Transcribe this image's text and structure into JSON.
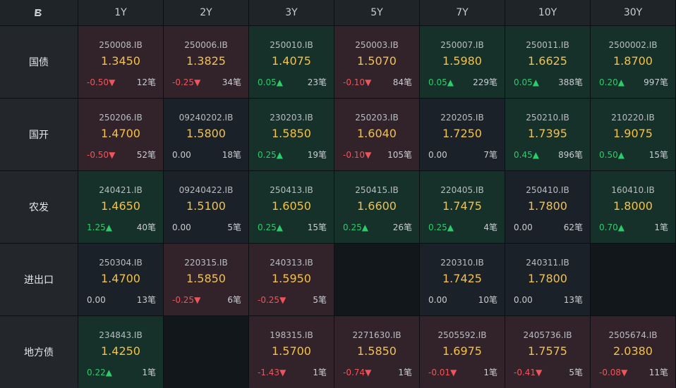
{
  "corner_logo": "B",
  "tenors": [
    "1Y",
    "2Y",
    "3Y",
    "5Y",
    "7Y",
    "10Y",
    "30Y"
  ],
  "count_suffix": "笔",
  "colors": {
    "up_text": "#2ecb6b",
    "down_text": "#f0545b",
    "price": "#f2c14e",
    "up_bg": "#163129",
    "down_bg": "#32232a",
    "flat_bg": "#1b2128",
    "empty_bg": "#12171c"
  },
  "rows": [
    {
      "label": "国债",
      "cells": [
        {
          "code": "250008.IB",
          "price": "1.3450",
          "change": "-0.50",
          "dir": "down",
          "count": "12笔"
        },
        {
          "code": "250006.IB",
          "price": "1.3825",
          "change": "-0.25",
          "dir": "down",
          "count": "34笔"
        },
        {
          "code": "250010.IB",
          "price": "1.4075",
          "change": "0.05",
          "dir": "up",
          "count": "23笔"
        },
        {
          "code": "250003.IB",
          "price": "1.5070",
          "change": "-0.10",
          "dir": "down",
          "count": "84笔"
        },
        {
          "code": "250007.IB",
          "price": "1.5980",
          "change": "0.05",
          "dir": "up",
          "count": "229笔"
        },
        {
          "code": "250011.IB",
          "price": "1.6625",
          "change": "0.05",
          "dir": "up",
          "count": "388笔"
        },
        {
          "code": "2500002.IB",
          "price": "1.8700",
          "change": "0.20",
          "dir": "up",
          "count": "997笔"
        }
      ]
    },
    {
      "label": "国开",
      "cells": [
        {
          "code": "250206.IB",
          "price": "1.4700",
          "change": "-0.50",
          "dir": "down",
          "count": "52笔"
        },
        {
          "code": "09240202.IB",
          "price": "1.5800",
          "change": "0.00",
          "dir": "flat",
          "count": "18笔"
        },
        {
          "code": "230203.IB",
          "price": "1.5850",
          "change": "0.25",
          "dir": "up",
          "count": "19笔"
        },
        {
          "code": "250203.IB",
          "price": "1.6040",
          "change": "-0.10",
          "dir": "down",
          "count": "105笔"
        },
        {
          "code": "220205.IB",
          "price": "1.7250",
          "change": "0.00",
          "dir": "flat",
          "count": "7笔"
        },
        {
          "code": "250210.IB",
          "price": "1.7395",
          "change": "0.45",
          "dir": "up",
          "count": "896笔"
        },
        {
          "code": "210220.IB",
          "price": "1.9075",
          "change": "0.50",
          "dir": "up",
          "count": "15笔"
        }
      ]
    },
    {
      "label": "农发",
      "cells": [
        {
          "code": "240421.IB",
          "price": "1.4650",
          "change": "1.25",
          "dir": "up",
          "count": "40笔"
        },
        {
          "code": "09240422.IB",
          "price": "1.5100",
          "change": "0.00",
          "dir": "flat",
          "count": "5笔"
        },
        {
          "code": "250413.IB",
          "price": "1.6050",
          "change": "0.25",
          "dir": "up",
          "count": "15笔"
        },
        {
          "code": "250415.IB",
          "price": "1.6600",
          "change": "0.25",
          "dir": "up",
          "count": "26笔"
        },
        {
          "code": "220405.IB",
          "price": "1.7475",
          "change": "0.25",
          "dir": "up",
          "count": "4笔"
        },
        {
          "code": "250410.IB",
          "price": "1.7800",
          "change": "0.00",
          "dir": "flat",
          "count": "62笔"
        },
        {
          "code": "160410.IB",
          "price": "1.8000",
          "change": "0.70",
          "dir": "up",
          "count": "1笔"
        }
      ]
    },
    {
      "label": "进出口",
      "cells": [
        {
          "code": "250304.IB",
          "price": "1.4700",
          "change": "0.00",
          "dir": "flat",
          "count": "13笔"
        },
        {
          "code": "220315.IB",
          "price": "1.5850",
          "change": "-0.25",
          "dir": "down",
          "count": "6笔"
        },
        {
          "code": "240313.IB",
          "price": "1.5950",
          "change": "-0.25",
          "dir": "down",
          "count": "5笔"
        },
        null,
        {
          "code": "220310.IB",
          "price": "1.7425",
          "change": "0.00",
          "dir": "flat",
          "count": "10笔"
        },
        {
          "code": "240311.IB",
          "price": "1.7800",
          "change": "0.00",
          "dir": "flat",
          "count": "13笔"
        },
        null
      ]
    },
    {
      "label": "地方债",
      "cells": [
        {
          "code": "234843.IB",
          "price": "1.4250",
          "change": "0.22",
          "dir": "up",
          "count": "1笔"
        },
        null,
        {
          "code": "198315.IB",
          "price": "1.5700",
          "change": "-1.43",
          "dir": "down",
          "count": "1笔"
        },
        {
          "code": "2271630.IB",
          "price": "1.5850",
          "change": "-0.74",
          "dir": "down",
          "count": "1笔"
        },
        {
          "code": "2505592.IB",
          "price": "1.6975",
          "change": "-0.01",
          "dir": "down",
          "count": "1笔"
        },
        {
          "code": "2405736.IB",
          "price": "1.7575",
          "change": "-0.41",
          "dir": "down",
          "count": "5笔"
        },
        {
          "code": "2505674.IB",
          "price": "2.0380",
          "change": "-0.08",
          "dir": "down",
          "count": "11笔"
        }
      ]
    }
  ]
}
